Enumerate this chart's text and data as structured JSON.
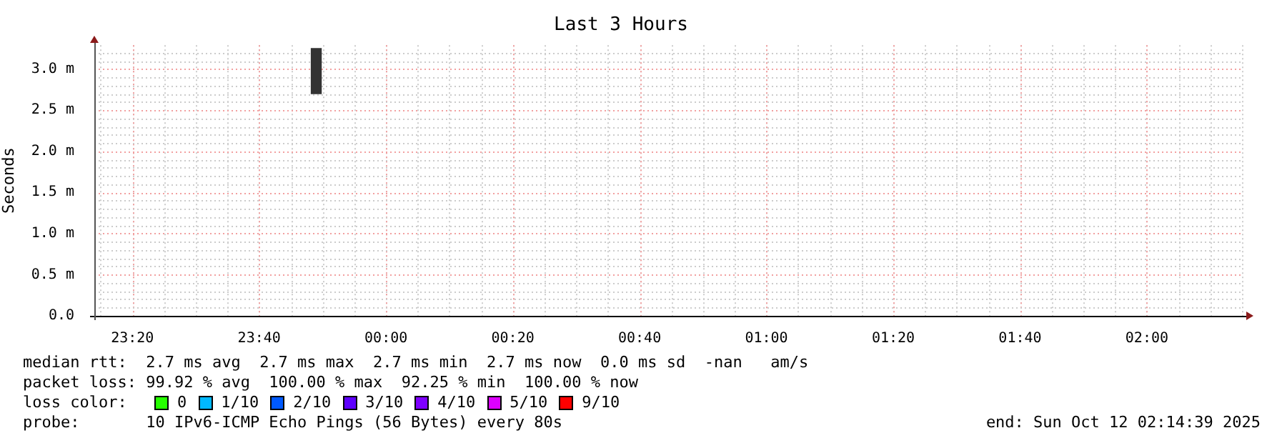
{
  "chart_data": {
    "type": "bar",
    "title": "Last 3 Hours",
    "ylabel": "Seconds",
    "x": [
      "2025-10-11T23:49"
    ],
    "values": [
      0.55
    ],
    "base": [
      2.7
    ],
    "color": "#333333",
    "xlim": [
      "2025-10-11T23:14",
      "2025-10-12T02:15"
    ],
    "xticks": [
      {
        "value": "2025-10-11T23:20",
        "label": "23:20"
      },
      {
        "value": "2025-10-11T23:40",
        "label": "23:40"
      },
      {
        "value": "2025-10-12T00:00",
        "label": "00:00"
      },
      {
        "value": "2025-10-12T00:20",
        "label": "00:20"
      },
      {
        "value": "2025-10-12T00:40",
        "label": "00:40"
      },
      {
        "value": "2025-10-12T01:00",
        "label": "01:00"
      },
      {
        "value": "2025-10-12T01:20",
        "label": "01:20"
      },
      {
        "value": "2025-10-12T01:40",
        "label": "01:40"
      },
      {
        "value": "2025-10-12T02:00",
        "label": "02:00"
      }
    ],
    "ylim": [
      0,
      3.29
    ],
    "yticks": [
      {
        "value": 0,
        "label": "0.0"
      },
      {
        "value": 0.5,
        "label": "0.5 m"
      },
      {
        "value": 1,
        "label": "1.0 m"
      },
      {
        "value": 1.5,
        "label": "1.5 m"
      },
      {
        "value": 2,
        "label": "2.0 m"
      },
      {
        "value": 2.5,
        "label": "2.5 m"
      },
      {
        "value": 3,
        "label": "3.0 m"
      }
    ],
    "grid": true,
    "annotations": [
      "median rtt:  2.7 ms avg  2.7 ms max  2.7 ms min  2.7 ms now  0.0 ms sd  -nan   am/s",
      "packet loss: 99.92 % avg  100.00 % max  92.25 % min  100.00 % now",
      "loss color:",
      "0",
      "1/10",
      "2/10",
      "3/10",
      "4/10",
      "5/10",
      "9/10",
      "probe:       10 IPv6-ICMP Echo Pings (56 Bytes) every 80s",
      "end: Sun Oct 12 02:14:39 2025"
    ]
  }
}
